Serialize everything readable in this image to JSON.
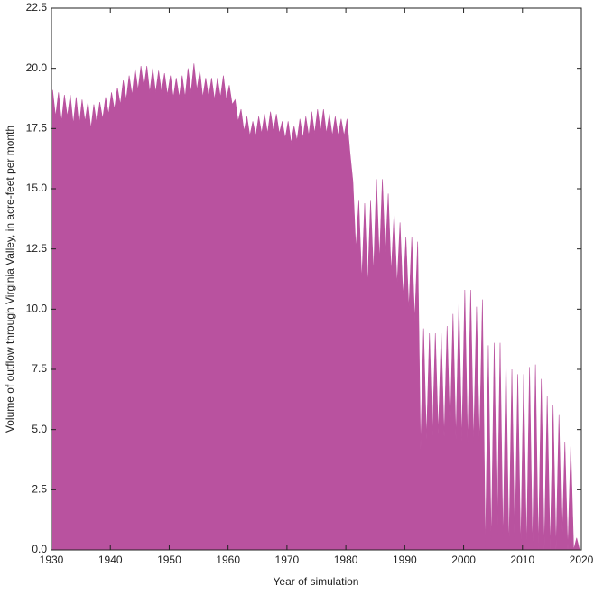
{
  "chart_data": {
    "type": "area",
    "xlabel": "Year of simulation",
    "ylabel": "Volume of outflow through Virginia Valley, in acre-feet per month",
    "color": "#b9529f",
    "xlim": [
      1930,
      2020
    ],
    "xticks": [
      1930,
      1940,
      1950,
      1960,
      1970,
      1980,
      1990,
      2000,
      2010,
      2020
    ],
    "ylim": [
      0,
      22.5
    ],
    "yticks": [
      {
        "value": 0,
        "label": "0.0"
      },
      2.5,
      {
        "value": 5,
        "label": "5.0"
      },
      7.5,
      {
        "value": 10,
        "label": "10.0"
      },
      12.5,
      {
        "value": 15,
        "label": "15.0"
      },
      17.5,
      {
        "value": 20,
        "label": "20.0"
      },
      22.5
    ],
    "x": [
      1930.2,
      1930.7,
      1931.2,
      1931.7,
      1932.2,
      1932.7,
      1933.2,
      1933.7,
      1934.2,
      1934.7,
      1935.2,
      1935.7,
      1936.2,
      1936.7,
      1937.2,
      1937.7,
      1938.2,
      1938.7,
      1939.2,
      1939.7,
      1940.2,
      1940.7,
      1941.2,
      1941.7,
      1942.2,
      1942.7,
      1943.2,
      1943.7,
      1944.2,
      1944.7,
      1945.2,
      1945.7,
      1946.2,
      1946.7,
      1947.2,
      1947.7,
      1948.2,
      1948.7,
      1949.2,
      1949.7,
      1950.2,
      1950.7,
      1951.2,
      1951.7,
      1952.2,
      1952.7,
      1953.2,
      1953.7,
      1954.2,
      1954.7,
      1955.2,
      1955.7,
      1956.2,
      1956.7,
      1957.2,
      1957.7,
      1958.2,
      1958.7,
      1959.2,
      1959.7,
      1960.2,
      1960.7,
      1961.2,
      1961.7,
      1962.2,
      1962.7,
      1963.2,
      1963.7,
      1964.2,
      1964.7,
      1965.2,
      1965.7,
      1966.2,
      1966.7,
      1967.2,
      1967.7,
      1968.2,
      1968.7,
      1969.2,
      1969.7,
      1970.2,
      1970.7,
      1971.2,
      1971.7,
      1972.2,
      1972.7,
      1973.2,
      1973.7,
      1974.2,
      1974.7,
      1975.2,
      1975.7,
      1976.2,
      1976.7,
      1977.2,
      1977.7,
      1978.2,
      1978.7,
      1979.2,
      1979.7,
      1980.2,
      1980.7,
      1981.2,
      1981.7,
      1982.2,
      1982.7,
      1983.2,
      1983.7,
      1984.2,
      1984.7,
      1985.2,
      1985.7,
      1986.2,
      1986.7,
      1987.2,
      1987.7,
      1988.2,
      1988.7,
      1989.2,
      1989.7,
      1990.2,
      1990.7,
      1991.2,
      1991.7,
      1992.2,
      1992.7,
      1993.2,
      1993.7,
      1994.2,
      1994.7,
      1995.2,
      1995.7,
      1996.2,
      1996.7,
      1997.2,
      1997.7,
      1998.2,
      1998.7,
      1999.2,
      1999.7,
      2000.2,
      2000.7,
      2001.2,
      2001.7,
      2002.2,
      2002.7,
      2003.2,
      2003.7,
      2004.2,
      2004.7,
      2005.2,
      2005.7,
      2006.2,
      2006.7,
      2007.2,
      2007.7,
      2008.2,
      2008.7,
      2009.2,
      2009.7,
      2010.2,
      2010.7,
      2011.2,
      2011.7,
      2012.2,
      2012.7,
      2013.2,
      2013.7,
      2014.2,
      2014.7,
      2015.2,
      2015.7,
      2016.2,
      2016.7,
      2017.2,
      2017.7,
      2018.2,
      2018.7,
      2019.2,
      2019.7
    ],
    "values": [
      19.1,
      18.0,
      19.0,
      17.8,
      18.9,
      18.0,
      18.9,
      17.7,
      18.8,
      17.6,
      18.7,
      17.8,
      18.6,
      17.5,
      18.5,
      17.7,
      18.6,
      17.9,
      18.8,
      18.1,
      19.0,
      18.3,
      19.2,
      18.5,
      19.5,
      18.7,
      19.7,
      18.9,
      20.0,
      19.1,
      20.1,
      19.2,
      20.1,
      19.0,
      20.0,
      19.0,
      19.9,
      19.0,
      19.8,
      18.9,
      19.7,
      18.8,
      19.6,
      18.8,
      19.7,
      18.8,
      20.0,
      19.0,
      20.2,
      19.1,
      19.9,
      18.8,
      19.6,
      18.8,
      19.6,
      18.7,
      19.6,
      18.8,
      19.7,
      18.7,
      19.3,
      18.5,
      18.7,
      17.8,
      18.3,
      17.4,
      18.0,
      17.2,
      17.8,
      17.2,
      18.0,
      17.3,
      18.1,
      17.3,
      18.2,
      17.4,
      18.1,
      17.3,
      17.8,
      17.1,
      17.8,
      16.9,
      17.6,
      17.0,
      17.9,
      17.1,
      18.0,
      17.2,
      18.2,
      17.3,
      18.3,
      17.4,
      18.3,
      17.3,
      18.1,
      17.2,
      18.0,
      17.2,
      17.9,
      17.2,
      17.9,
      16.5,
      15.3,
      12.5,
      14.5,
      11.2,
      14.4,
      11.0,
      14.5,
      11.5,
      15.4,
      12.0,
      15.4,
      12.2,
      14.8,
      11.5,
      14.0,
      11.0,
      13.6,
      10.5,
      13.0,
      10.0,
      13.0,
      9.5,
      12.8,
      4.2,
      9.2,
      4.6,
      9.0,
      4.7,
      9.0,
      4.8,
      9.0,
      4.7,
      9.3,
      4.8,
      9.8,
      4.6,
      10.3,
      4.5,
      10.8,
      4.4,
      10.8,
      4.4,
      10.1,
      4.4,
      10.4,
      0.0,
      8.5,
      0.2,
      8.6,
      0.3,
      8.6,
      0.3,
      8.0,
      0.0,
      7.5,
      0.0,
      7.3,
      0.0,
      7.3,
      0.0,
      7.6,
      0.0,
      7.7,
      0.0,
      7.1,
      0.0,
      6.4,
      0.0,
      6.0,
      0.0,
      5.6,
      0.0,
      4.5,
      0.0,
      4.3,
      0.0,
      0.5,
      0.0
    ]
  }
}
